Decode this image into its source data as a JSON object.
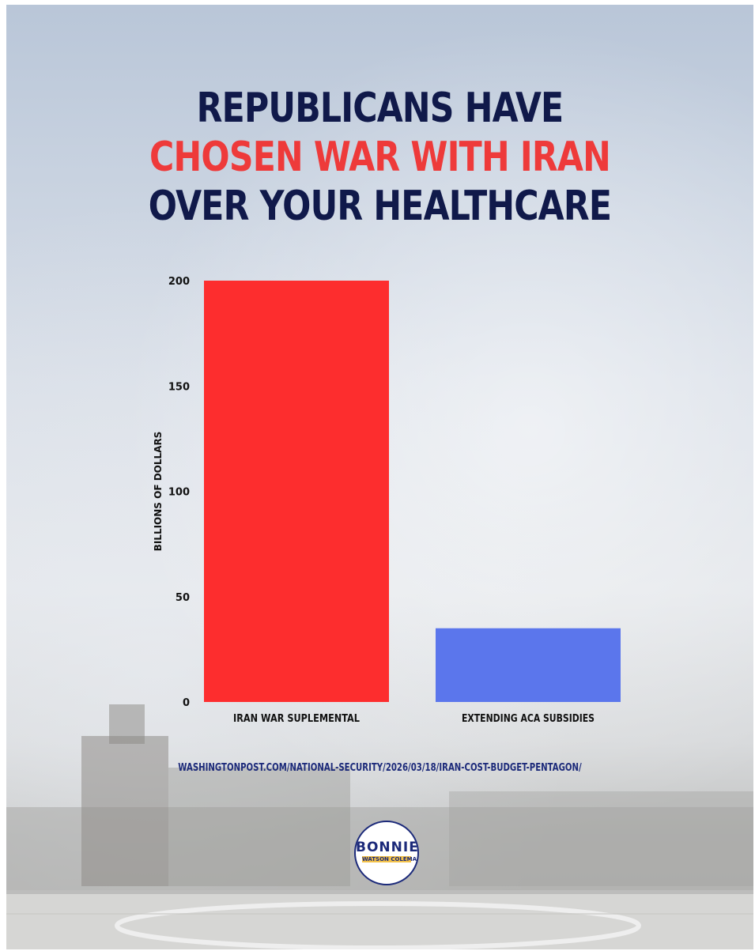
{
  "headline": {
    "line1": "REPUBLICANS HAVE",
    "line2": "CHOSEN WAR WITH IRAN",
    "line3": "OVER YOUR HEALTHCARE"
  },
  "chart_data": {
    "type": "bar",
    "categories": [
      "IRAN WAR SUPLEMENTAL",
      "EXTENDING ACA SUBSIDIES"
    ],
    "values": [
      200,
      35
    ],
    "colors": [
      "#fd2d2e",
      "#5b76ec"
    ],
    "ylabel": "BILLIONS OF DOLLARS",
    "xlabel": "",
    "ylim": [
      0,
      200
    ],
    "yticks": [
      0,
      50,
      100,
      150,
      200
    ],
    "grid": false
  },
  "source": "WASHINGTONPOST.COM/NATIONAL-SECURITY/2026/03/18/IRAN-COST-BUDGET-PENTAGON/",
  "logo": {
    "name": "BONNIE",
    "subtitle": "WATSON COLEMAN"
  },
  "colors": {
    "navy": "#10194a",
    "red_text": "#ee3a3a",
    "source_text": "#1c2a7a"
  }
}
